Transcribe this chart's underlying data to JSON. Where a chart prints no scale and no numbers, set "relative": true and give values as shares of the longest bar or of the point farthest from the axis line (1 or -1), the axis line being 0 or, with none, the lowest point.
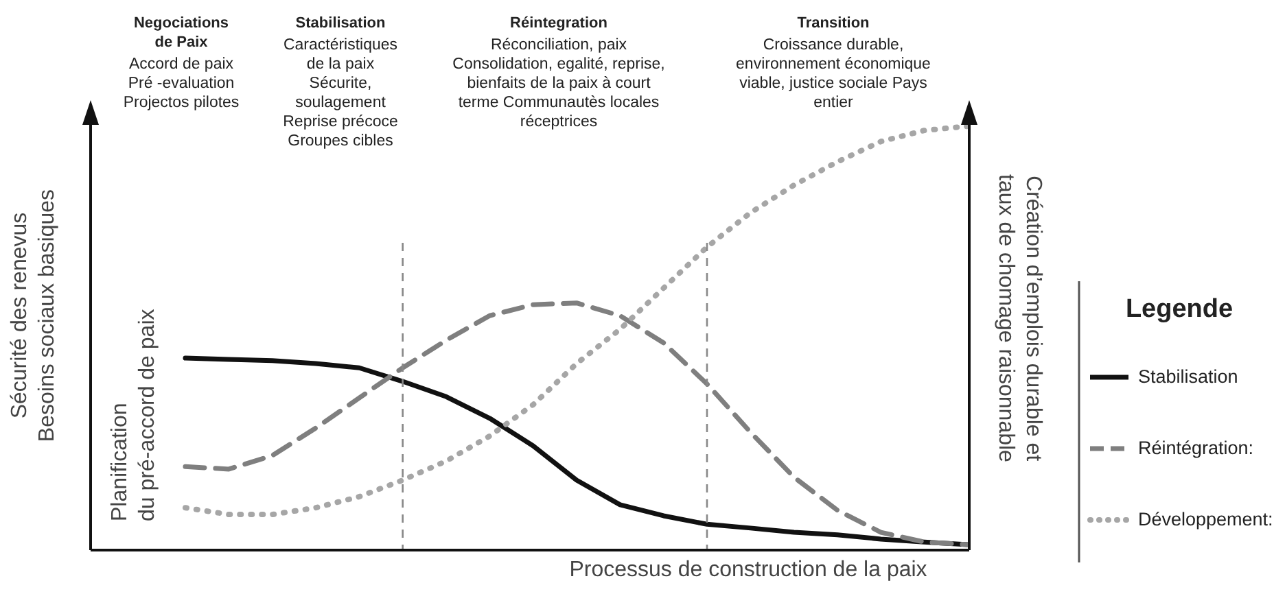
{
  "chart_data": {
    "type": "line",
    "relative": true,
    "xlabel": "Processus de construction de la paix",
    "ylabel": "Sécurité des renevus\nBesoins sociaux basiques",
    "y2label": "Création d’emplois durable et\ntaux de chomage raisonnable",
    "legend_title": "Legende",
    "legend": "right",
    "grid": false,
    "marker": "none",
    "categories": [
      null,
      null,
      null,
      null,
      null,
      null,
      null,
      null,
      null,
      null,
      null,
      null,
      null,
      null,
      null,
      null,
      null,
      null,
      null
    ],
    "series": [
      {
        "name": "Stabilisation",
        "color": "#111111",
        "line_style": "solid",
        "values": [
          0.453,
          0.45,
          0.447,
          0.44,
          0.43,
          0.398,
          0.362,
          0.311,
          0.246,
          0.165,
          0.107,
          0.081,
          0.061,
          0.052,
          0.042,
          0.036,
          0.026,
          0.019,
          0.013
        ]
      },
      {
        "name": "Réintégration:",
        "color": "#7f7f7f",
        "line_style": "dashed",
        "values": [
          0.197,
          0.191,
          0.223,
          0.288,
          0.359,
          0.43,
          0.495,
          0.553,
          0.579,
          0.583,
          0.553,
          0.489,
          0.392,
          0.278,
          0.172,
          0.094,
          0.042,
          0.019,
          0.013
        ]
      },
      {
        "name": "Développement:",
        "color": "#a6a6a6",
        "line_style": "dotted",
        "values": [
          0.1,
          0.084,
          0.084,
          0.1,
          0.126,
          0.165,
          0.21,
          0.269,
          0.343,
          0.44,
          0.521,
          0.618,
          0.715,
          0.796,
          0.861,
          0.916,
          0.964,
          0.99,
          1
        ]
      }
    ],
    "annotations": [
      "Negociations\nde Paix",
      "Stabilisation",
      "Réintegration",
      "Transition",
      "Accord de paix\nPré -evaluation\nProjectos pilotes",
      "Caractéristiques\nde la paix\nSécurite,\nsoulagement\nReprise précoce\nGroupes cibles",
      "Réconciliation, paix\nConsolidation, egalité, reprise,\nbienfaits de la paix à court\nterme Communautès locales\nréceptrices",
      "Croissance durable,\nenvironnement économique\nviable, justice sociale Pays\nentier",
      "Planification\ndu pré-accord de paix"
    ]
  }
}
